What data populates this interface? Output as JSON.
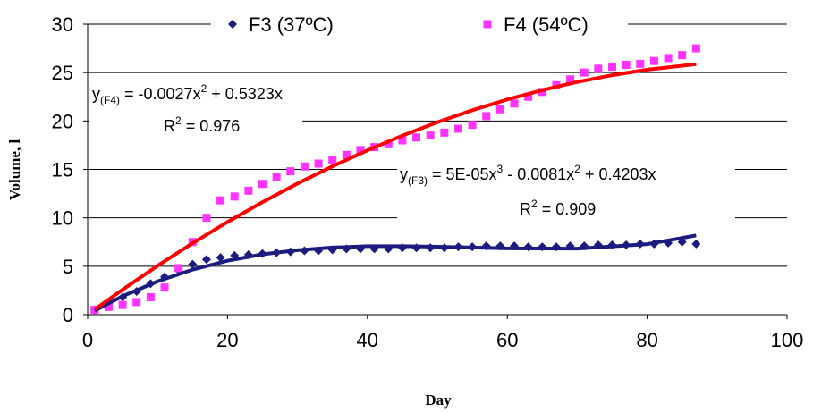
{
  "chart_data": {
    "type": "scatter",
    "xlabel": "Day",
    "ylabel": "Volume, l",
    "xlim": [
      0,
      100
    ],
    "xticks": [
      0,
      20,
      40,
      60,
      80,
      100
    ],
    "ylim": [
      0,
      30
    ],
    "yticks": [
      0,
      5,
      10,
      15,
      20,
      25,
      30
    ],
    "grid": true,
    "series": [
      {
        "name": "F3 (37ºC)",
        "color": "#1c1c80",
        "marker": "diamond",
        "x": [
          1,
          3,
          5,
          7,
          9,
          11,
          13,
          15,
          17,
          19,
          21,
          23,
          25,
          27,
          29,
          31,
          33,
          35,
          37,
          39,
          41,
          43,
          45,
          47,
          49,
          51,
          53,
          55,
          57,
          59,
          61,
          63,
          65,
          67,
          69,
          71,
          73,
          75,
          77,
          79,
          81,
          83,
          85,
          87
        ],
        "values": [
          0.5,
          1.2,
          1.8,
          2.4,
          3.2,
          3.9,
          4.6,
          5.2,
          5.7,
          5.9,
          6.1,
          6.2,
          6.3,
          6.4,
          6.5,
          6.6,
          6.6,
          6.7,
          6.8,
          6.8,
          6.8,
          6.8,
          6.9,
          6.9,
          6.9,
          6.9,
          7.0,
          7.0,
          7.1,
          7.1,
          7.1,
          7.0,
          7.0,
          7.0,
          7.1,
          7.1,
          7.2,
          7.2,
          7.2,
          7.3,
          7.3,
          7.4,
          7.5,
          7.3
        ],
        "trendline": {
          "color": "#1c1c80",
          "x": [
            1,
            5,
            10,
            15,
            20,
            25,
            30,
            35,
            40,
            45,
            50,
            55,
            60,
            65,
            70,
            75,
            80,
            87
          ],
          "values": [
            0.41,
            1.91,
            3.44,
            4.65,
            5.57,
            6.23,
            6.66,
            6.93,
            7.07,
            7.07,
            7.02,
            6.93,
            6.84,
            6.83,
            6.82,
            7.05,
            7.28,
            8.18
          ]
        }
      },
      {
        "name": "F4 (54ºC)",
        "color": "#ff33ff",
        "marker": "square",
        "x": [
          1,
          3,
          5,
          7,
          9,
          11,
          13,
          15,
          17,
          19,
          21,
          23,
          25,
          27,
          29,
          31,
          33,
          35,
          37,
          39,
          41,
          43,
          45,
          47,
          49,
          51,
          53,
          55,
          57,
          59,
          61,
          63,
          65,
          67,
          69,
          71,
          73,
          75,
          77,
          79,
          81,
          83,
          85,
          87
        ],
        "values": [
          0.5,
          0.8,
          1.0,
          1.3,
          1.8,
          2.8,
          4.8,
          7.5,
          10.0,
          11.8,
          12.2,
          12.8,
          13.5,
          14.2,
          14.8,
          15.3,
          15.6,
          16.0,
          16.5,
          17.0,
          17.3,
          17.6,
          18.0,
          18.3,
          18.5,
          18.8,
          19.2,
          19.6,
          20.5,
          21.2,
          21.8,
          22.5,
          23.0,
          23.7,
          24.3,
          25.0,
          25.4,
          25.6,
          25.8,
          25.9,
          26.2,
          26.5,
          26.8,
          27.5
        ],
        "trendline": {
          "color": "#ff0000",
          "x": [
            1,
            5,
            10,
            15,
            20,
            25,
            30,
            35,
            40,
            45,
            50,
            55,
            60,
            65,
            70,
            75,
            80,
            87
          ],
          "values": [
            0.53,
            2.59,
            5.05,
            7.38,
            9.57,
            11.62,
            13.54,
            15.32,
            16.97,
            18.49,
            19.87,
            21.11,
            22.22,
            23.19,
            24.03,
            24.73,
            25.3,
            25.87
          ]
        }
      }
    ],
    "annotations": [
      {
        "parts": [
          "y",
          "(F4)",
          " = -0.0027x",
          "2",
          " + 0.5323x"
        ]
      },
      {
        "parts": [
          "R",
          "2",
          " = 0.976"
        ]
      },
      {
        "parts": [
          "y",
          "(F3)",
          " = 5E-05x",
          "3",
          " - 0.0081x",
          "2",
          " + 0.4203x"
        ]
      },
      {
        "parts": [
          "R",
          "2",
          " = 0.909"
        ]
      }
    ]
  }
}
